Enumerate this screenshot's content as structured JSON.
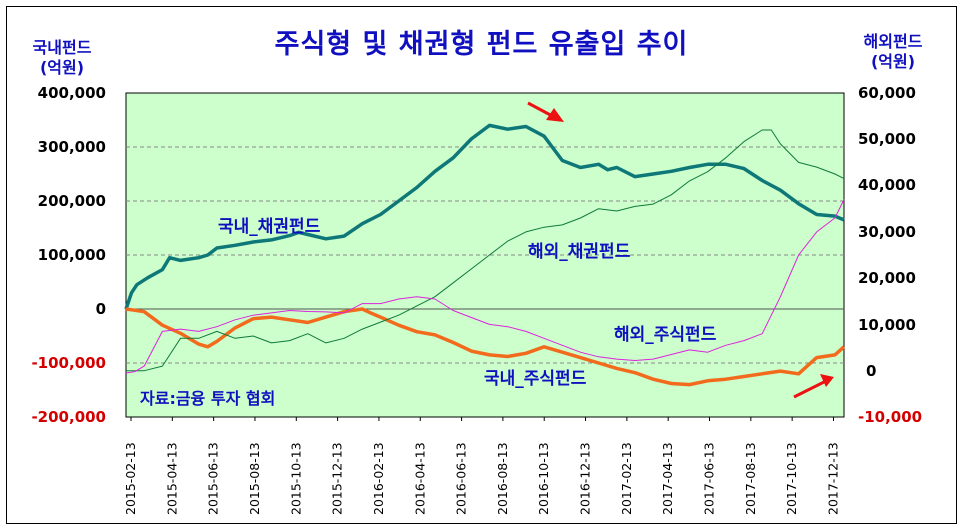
{
  "chart_data": {
    "type": "line",
    "title": "주식형 및 채권형 펀드 유출입 추이",
    "y_left_unit": [
      "국내펀드",
      "(억원)"
    ],
    "y_right_unit": [
      "해외펀드",
      "(억원)"
    ],
    "y_left": {
      "ticks": [
        "400,000",
        "300,000",
        "200,000",
        "100,000",
        "0",
        "-100,000",
        "-200,000"
      ],
      "tick_values": [
        400000,
        300000,
        200000,
        100000,
        0,
        -100000,
        -200000
      ],
      "tick_colors": [
        "#000000",
        "#000000",
        "#000000",
        "#000000",
        "#000000",
        "#d40000",
        "#d40000"
      ],
      "ylim": [
        -200000,
        400000
      ]
    },
    "y_right": {
      "ticks": [
        "60,000",
        "50,000",
        "40,000",
        "30,000",
        "20,000",
        "10,000",
        "0",
        "-10,000"
      ],
      "tick_values": [
        60000,
        50000,
        40000,
        30000,
        20000,
        10000,
        0,
        -10000
      ],
      "tick_colors": [
        "#000000",
        "#000000",
        "#000000",
        "#000000",
        "#000000",
        "#000000",
        "#000000",
        "#d40000"
      ],
      "ylim": [
        -10000,
        60000
      ]
    },
    "x_ticks": [
      "2015-02-13",
      "2015-04-13",
      "2015-06-13",
      "2015-08-13",
      "2015-10-13",
      "2015-12-13",
      "2016-02-13",
      "2016-04-13",
      "2016-06-13",
      "2016-08-13",
      "2016-10-13",
      "2016-12-13",
      "2017-02-13",
      "2017-04-13",
      "2017-06-13",
      "2017-08-13",
      "2017-10-13",
      "2017-12-13"
    ],
    "x_range_months": [
      0,
      35
    ],
    "series": [
      {
        "name": "국내_채권펀드",
        "axis": "left",
        "color": "#0e7878",
        "width": 3.5,
        "points": [
          [
            0,
            0
          ],
          [
            0.3,
            30000
          ],
          [
            0.6,
            45000
          ],
          [
            1.2,
            58000
          ],
          [
            2,
            73000
          ],
          [
            2.4,
            95000
          ],
          [
            3,
            90000
          ],
          [
            4,
            95000
          ],
          [
            4.5,
            100000
          ],
          [
            5,
            113000
          ],
          [
            6,
            118000
          ],
          [
            7,
            124000
          ],
          [
            8,
            128000
          ],
          [
            9,
            136000
          ],
          [
            9.5,
            142000
          ],
          [
            10,
            138000
          ],
          [
            11,
            130000
          ],
          [
            12,
            135000
          ],
          [
            13,
            158000
          ],
          [
            14,
            175000
          ],
          [
            15,
            200000
          ],
          [
            16,
            225000
          ],
          [
            17,
            255000
          ],
          [
            18,
            280000
          ],
          [
            19,
            315000
          ],
          [
            20,
            340000
          ],
          [
            21,
            333000
          ],
          [
            22,
            338000
          ],
          [
            23,
            320000
          ],
          [
            24,
            275000
          ],
          [
            25,
            262000
          ],
          [
            26,
            268000
          ],
          [
            26.5,
            258000
          ],
          [
            27,
            262000
          ],
          [
            28,
            245000
          ],
          [
            29,
            250000
          ],
          [
            30,
            255000
          ],
          [
            31,
            262000
          ],
          [
            32,
            268000
          ],
          [
            33,
            268000
          ],
          [
            34,
            260000
          ],
          [
            35,
            238000
          ],
          [
            36,
            220000
          ],
          [
            37,
            195000
          ],
          [
            38,
            175000
          ],
          [
            39,
            172000
          ],
          [
            39.5,
            165000
          ]
        ]
      },
      {
        "name": "국내_주식펀드",
        "axis": "left",
        "color": "#f26b1d",
        "width": 3.5,
        "points": [
          [
            0,
            0
          ],
          [
            1,
            -5000
          ],
          [
            2,
            -30000
          ],
          [
            3,
            -45000
          ],
          [
            4,
            -65000
          ],
          [
            4.5,
            -70000
          ],
          [
            5,
            -60000
          ],
          [
            6,
            -35000
          ],
          [
            7,
            -18000
          ],
          [
            8,
            -15000
          ],
          [
            9,
            -20000
          ],
          [
            10,
            -25000
          ],
          [
            11,
            -15000
          ],
          [
            12,
            -5000
          ],
          [
            13,
            0
          ],
          [
            13.5,
            -8000
          ],
          [
            14,
            -15000
          ],
          [
            15,
            -30000
          ],
          [
            16,
            -42000
          ],
          [
            17,
            -48000
          ],
          [
            18,
            -62000
          ],
          [
            19,
            -78000
          ],
          [
            20,
            -85000
          ],
          [
            21,
            -88000
          ],
          [
            22,
            -82000
          ],
          [
            23,
            -70000
          ],
          [
            24,
            -80000
          ],
          [
            25,
            -90000
          ],
          [
            26,
            -100000
          ],
          [
            27,
            -110000
          ],
          [
            28,
            -118000
          ],
          [
            29,
            -130000
          ],
          [
            30,
            -138000
          ],
          [
            31,
            -140000
          ],
          [
            32,
            -133000
          ],
          [
            33,
            -130000
          ],
          [
            34,
            -125000
          ],
          [
            35,
            -120000
          ],
          [
            36,
            -115000
          ],
          [
            37,
            -120000
          ],
          [
            37.5,
            -105000
          ],
          [
            38,
            -90000
          ],
          [
            39,
            -85000
          ],
          [
            39.5,
            -70000
          ]
        ]
      },
      {
        "name": "해외_채권펀드",
        "axis": "right",
        "color": "#107a3a",
        "width": 1,
        "points": [
          [
            0,
            0
          ],
          [
            1,
            0.5
          ],
          [
            2,
            1000
          ],
          [
            3,
            7000
          ],
          [
            4,
            7000
          ],
          [
            5,
            8500
          ],
          [
            6,
            7000
          ],
          [
            7,
            7500
          ],
          [
            8,
            6000
          ],
          [
            9,
            6500
          ],
          [
            10,
            8000
          ],
          [
            11,
            6000
          ],
          [
            12,
            7000
          ],
          [
            13,
            9000
          ],
          [
            14,
            10500
          ],
          [
            15,
            12000
          ],
          [
            16,
            14000
          ],
          [
            17,
            16000
          ],
          [
            18,
            19000
          ],
          [
            19,
            22000
          ],
          [
            20,
            25000
          ],
          [
            21,
            28000
          ],
          [
            22,
            30000
          ],
          [
            23,
            31000
          ],
          [
            24,
            31500
          ],
          [
            25,
            33000
          ],
          [
            26,
            35000
          ],
          [
            27,
            34500
          ],
          [
            28,
            35500
          ],
          [
            29,
            36000
          ],
          [
            30,
            38000
          ],
          [
            31,
            41000
          ],
          [
            32,
            43000
          ],
          [
            33,
            46000
          ],
          [
            34,
            49500
          ],
          [
            35,
            52000
          ],
          [
            35.5,
            52000
          ],
          [
            36,
            49000
          ],
          [
            37,
            45000
          ],
          [
            38,
            44000
          ],
          [
            39,
            42500
          ],
          [
            39.5,
            41500
          ]
        ]
      },
      {
        "name": "해외_주식펀드",
        "axis": "right",
        "color": "#dd22dd",
        "width": 1,
        "points": [
          [
            0,
            -500
          ],
          [
            0.5,
            -200
          ],
          [
            1,
            1000
          ],
          [
            2,
            8500
          ],
          [
            3,
            9000
          ],
          [
            4,
            8500
          ],
          [
            5,
            9500
          ],
          [
            6,
            11000
          ],
          [
            7,
            12000
          ],
          [
            8,
            12500
          ],
          [
            9,
            13000
          ],
          [
            10,
            12800
          ],
          [
            11,
            12700
          ],
          [
            12,
            12500
          ],
          [
            13,
            14500
          ],
          [
            14,
            14500
          ],
          [
            15,
            15500
          ],
          [
            16,
            16000
          ],
          [
            17,
            15500
          ],
          [
            18,
            13000
          ],
          [
            19,
            11500
          ],
          [
            20,
            10000
          ],
          [
            21,
            9500
          ],
          [
            22,
            8500
          ],
          [
            23,
            7000
          ],
          [
            24,
            5500
          ],
          [
            25,
            4000
          ],
          [
            26,
            3000
          ],
          [
            27,
            2500
          ],
          [
            28,
            2200
          ],
          [
            29,
            2500
          ],
          [
            30,
            3500
          ],
          [
            31,
            4500
          ],
          [
            32,
            4000
          ],
          [
            33,
            5500
          ],
          [
            34,
            6500
          ],
          [
            35,
            8000
          ],
          [
            36,
            16000
          ],
          [
            37,
            25000
          ],
          [
            38,
            30000
          ],
          [
            39,
            33000
          ],
          [
            39.5,
            37000
          ]
        ]
      }
    ],
    "labels": {
      "domestic_bond": "국내_채권펀드",
      "overseas_bond": "해외_채권펀드",
      "overseas_stock": "해외_주식펀드",
      "domestic_stock": "국내_주식펀드",
      "source": "자료:금융 투자 협회"
    },
    "grid": "horizontal dashed",
    "plot_background": "#ccffcc",
    "annotations": [
      "red-arrow-down-near-peak",
      "red-arrow-up-at-end"
    ]
  }
}
